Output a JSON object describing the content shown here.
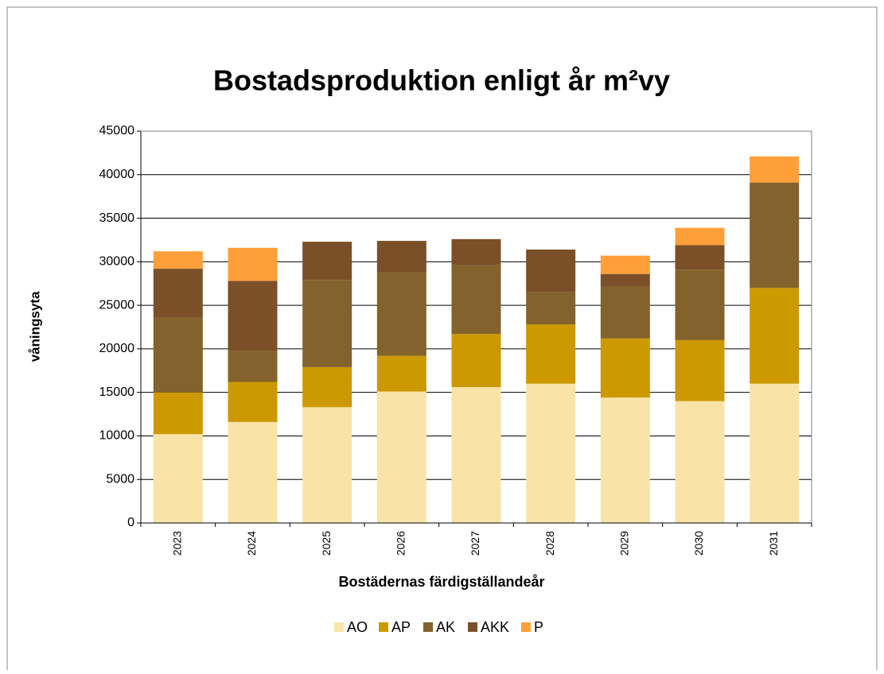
{
  "chart_data": {
    "type": "stacked_bar",
    "title": "Bostadsproduktion enligt år m²vy",
    "x_label": "Bostädernas färdigställandeår",
    "y_label": "våningsyta",
    "categories": [
      "2023",
      "2024",
      "2025",
      "2026",
      "2027",
      "2028",
      "2029",
      "2030",
      "2031"
    ],
    "series": [
      {
        "name": "AO",
        "color": "#fae3a7",
        "values": [
          10200,
          11600,
          13300,
          15100,
          15600,
          16000,
          14400,
          14000,
          16000
        ]
      },
      {
        "name": "AP",
        "color": "#cc9900",
        "values": [
          4800,
          4600,
          4600,
          4100,
          6100,
          6800,
          6800,
          7000,
          11000
        ]
      },
      {
        "name": "AK",
        "color": "#83622b",
        "values": [
          8600,
          3600,
          10000,
          9600,
          7900,
          3700,
          6000,
          8100,
          12100
        ]
      },
      {
        "name": "AKK",
        "color": "#7b4f28",
        "values": [
          5600,
          8000,
          4400,
          3600,
          3000,
          4900,
          1400,
          2800,
          0
        ]
      },
      {
        "name": "P",
        "color": "#ff9f3a",
        "values": [
          2000,
          3800,
          0,
          0,
          0,
          0,
          2100,
          2000,
          3000
        ]
      }
    ],
    "ylim": [
      0,
      45000
    ],
    "yticks": [
      0,
      5000,
      10000,
      15000,
      20000,
      25000,
      30000,
      35000,
      40000,
      45000
    ],
    "grid": true,
    "legend": "bottom"
  }
}
